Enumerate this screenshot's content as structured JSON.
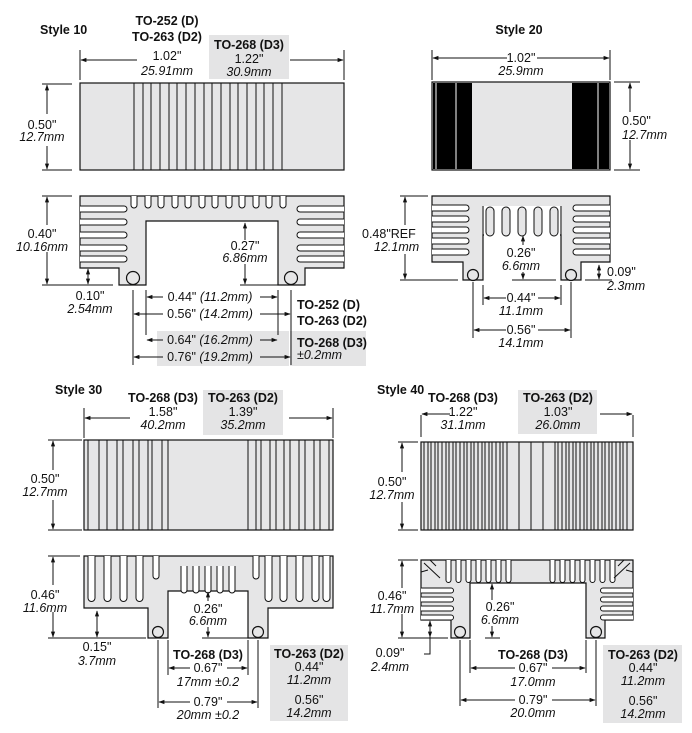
{
  "colors": {
    "metal": "#e6e6e7",
    "highlight_box": "#e4e4e5",
    "line": "#111111"
  },
  "style10": {
    "title": "Style 10",
    "pkg_d": "TO-252 (D)",
    "pkg_d2": "TO-263 (D2)",
    "pkg_d3": "TO-268 (D3)",
    "width_in": "1.02\"",
    "width_mm": "25.91mm",
    "d3_width_in": "1.22\"",
    "d3_width_mm": "30.9mm",
    "length_in": "0.50\"",
    "length_mm": "12.7mm",
    "height_in": "0.40\"",
    "height_mm": "10.16mm",
    "foot_in": "0.10\"",
    "foot_mm": "2.54mm",
    "cavity_in": "0.27\"",
    "cavity_mm": "6.86mm",
    "dim1_in": "0.44\"",
    "dim1_mm": "(11.2mm)",
    "dim2_in": "0.56\"",
    "dim2_mm": "(14.2mm)",
    "dim3_in": "0.64\"",
    "dim3_mm": "(16.2mm)",
    "dim4_in": "0.76\"",
    "dim4_mm": "(19.2mm)",
    "tolerance": "±0.2mm"
  },
  "style20": {
    "title": "Style 20",
    "width_in": "1.02\"",
    "width_mm": "25.9mm",
    "length_in": "0.50\"",
    "length_mm": "12.7mm",
    "height_in": "0.48\"REF",
    "height_mm": "12.1mm",
    "cavity_in": "0.26\"",
    "cavity_mm": "6.6mm",
    "foot_in": "0.09\"",
    "foot_mm": "2.3mm",
    "dim1_in": "0.44\"",
    "dim1_mm": "11.1mm",
    "dim2_in": "0.56\"",
    "dim2_mm": "14.1mm"
  },
  "style30": {
    "title": "Style 30",
    "pkg_d3": "TO-268 (D3)",
    "pkg_d2": "TO-263 (D2)",
    "d3_width_in": "1.58\"",
    "d3_width_mm": "40.2mm",
    "d2_width_in": "1.39\"",
    "d2_width_mm": "35.2mm",
    "length_in": "0.50\"",
    "length_mm": "12.7mm",
    "height_in": "0.46\"",
    "height_mm": "11.6mm",
    "foot_in": "0.15\"",
    "foot_mm": "3.7mm",
    "cavity_in": "0.26\"",
    "cavity_mm": "6.6mm",
    "d3_dim1_in": "0.67\"",
    "d3_dim1_mm": "17mm ±0.2",
    "d3_dim2_in": "0.79\"",
    "d3_dim2_mm": "20mm ±0.2",
    "d2_dim1_in": "0.44\"",
    "d2_dim1_mm": "11.2mm",
    "d2_dim2_in": "0.56\"",
    "d2_dim2_mm": "14.2mm"
  },
  "style40": {
    "title": "Style 40",
    "pkg_d3": "TO-268 (D3)",
    "pkg_d2": "TO-263 (D2)",
    "d3_width_in": "1.22\"",
    "d3_width_mm": "31.1mm",
    "d2_width_in": "1.03\"",
    "d2_width_mm": "26.0mm",
    "length_in": "0.50\"",
    "length_mm": "12.7mm",
    "height_in": "0.46\"",
    "height_mm": "11.7mm",
    "foot_in": "0.09\"",
    "foot_mm": "2.4mm",
    "cavity_in": "0.26\"",
    "cavity_mm": "6.6mm",
    "d3_dim1_in": "0.67\"",
    "d3_dim1_mm": "17.0mm",
    "d3_dim2_in": "0.79\"",
    "d3_dim2_mm": "20.0mm",
    "d2_dim1_in": "0.44\"",
    "d2_dim1_mm": "11.2mm",
    "d2_dim2_in": "0.56\"",
    "d2_dim2_mm": "14.2mm"
  }
}
